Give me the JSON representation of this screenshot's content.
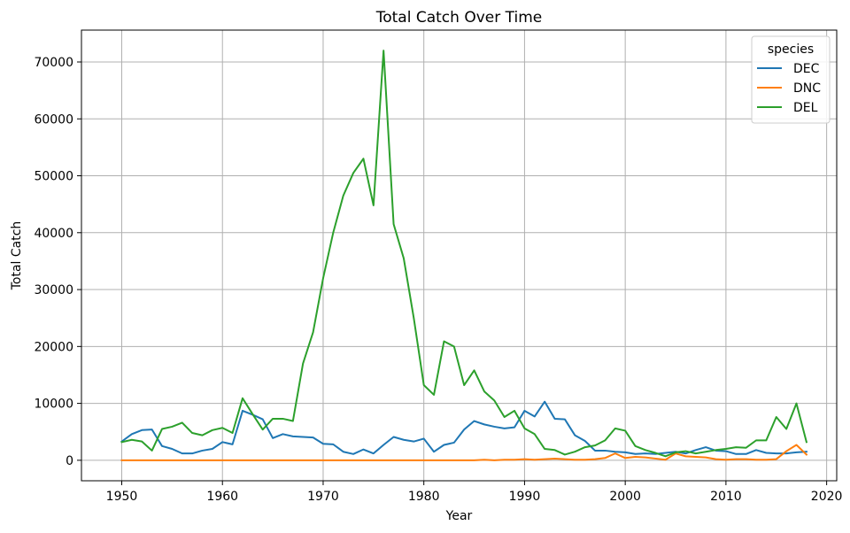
{
  "chart_data": {
    "type": "line",
    "title": "Total Catch Over Time",
    "xlabel": "Year",
    "ylabel": "Total Catch",
    "xlim": [
      1946,
      2021
    ],
    "ylim": [
      -3600,
      75600
    ],
    "xticks": [
      1950,
      1960,
      1970,
      1980,
      1990,
      2000,
      2010,
      2020
    ],
    "yticks": [
      0,
      10000,
      20000,
      30000,
      40000,
      50000,
      60000,
      70000
    ],
    "grid": true,
    "legend": {
      "title": "species",
      "placement": "top-right"
    },
    "x": [
      1950,
      1951,
      1952,
      1953,
      1954,
      1955,
      1956,
      1957,
      1958,
      1959,
      1960,
      1961,
      1962,
      1963,
      1964,
      1965,
      1966,
      1967,
      1968,
      1969,
      1970,
      1971,
      1972,
      1973,
      1974,
      1975,
      1976,
      1977,
      1978,
      1979,
      1980,
      1981,
      1982,
      1983,
      1984,
      1985,
      1986,
      1987,
      1988,
      1989,
      1990,
      1991,
      1992,
      1993,
      1994,
      1995,
      1996,
      1997,
      1998,
      1999,
      2000,
      2001,
      2002,
      2003,
      2004,
      2005,
      2006,
      2007,
      2008,
      2009,
      2010,
      2011,
      2012,
      2013,
      2014,
      2015,
      2016,
      2017,
      2018
    ],
    "series": [
      {
        "name": "DEC",
        "color": "#1f77b4",
        "values": [
          3300,
          4600,
          5300,
          5400,
          2500,
          2000,
          1200,
          1200,
          1700,
          2000,
          3200,
          2800,
          8700,
          8000,
          7200,
          3900,
          4600,
          4200,
          4100,
          4000,
          2900,
          2800,
          1500,
          1100,
          1900,
          1200,
          2700,
          4100,
          3600,
          3300,
          3800,
          1500,
          2700,
          3100,
          5400,
          6900,
          6300,
          5900,
          5600,
          5800,
          8700,
          7700,
          10300,
          7300,
          7200,
          4400,
          3400,
          1700,
          1700,
          1500,
          1400,
          1100,
          1200,
          1100,
          1300,
          1500,
          1200,
          1800,
          2300,
          1700,
          1600,
          1100,
          1100,
          1800,
          1300,
          1200,
          1200,
          1400,
          1500
        ]
      },
      {
        "name": "DNC",
        "color": "#ff7f0e",
        "values": [
          0,
          0,
          0,
          0,
          0,
          0,
          0,
          0,
          0,
          0,
          0,
          0,
          0,
          0,
          0,
          0,
          0,
          0,
          0,
          0,
          0,
          0,
          0,
          0,
          0,
          0,
          0,
          0,
          0,
          0,
          0,
          0,
          0,
          0,
          0,
          0,
          100,
          0,
          100,
          100,
          200,
          100,
          200,
          300,
          200,
          100,
          100,
          200,
          400,
          1200,
          400,
          600,
          500,
          300,
          100,
          1200,
          700,
          600,
          500,
          200,
          100,
          200,
          200,
          100,
          100,
          200,
          1600,
          2700,
          1000
        ]
      },
      {
        "name": "DEL",
        "color": "#2ca02c",
        "values": [
          3200,
          3600,
          3300,
          1700,
          5500,
          5900,
          6600,
          4800,
          4400,
          5300,
          5700,
          4800,
          10900,
          8100,
          5400,
          7300,
          7300,
          6900,
          17000,
          22500,
          32000,
          40000,
          46500,
          50500,
          53000,
          44800,
          72000,
          41500,
          35500,
          25000,
          13200,
          11500,
          20900,
          20000,
          13200,
          15800,
          12100,
          10500,
          7600,
          8700,
          5600,
          4600,
          2000,
          1800,
          1000,
          1500,
          2300,
          2600,
          3500,
          5600,
          5200,
          2500,
          1800,
          1300,
          700,
          1400,
          1600,
          1200,
          1500,
          1800,
          2000,
          2300,
          2200,
          3500,
          3500,
          7600,
          5500,
          10000,
          3200
        ]
      }
    ]
  }
}
